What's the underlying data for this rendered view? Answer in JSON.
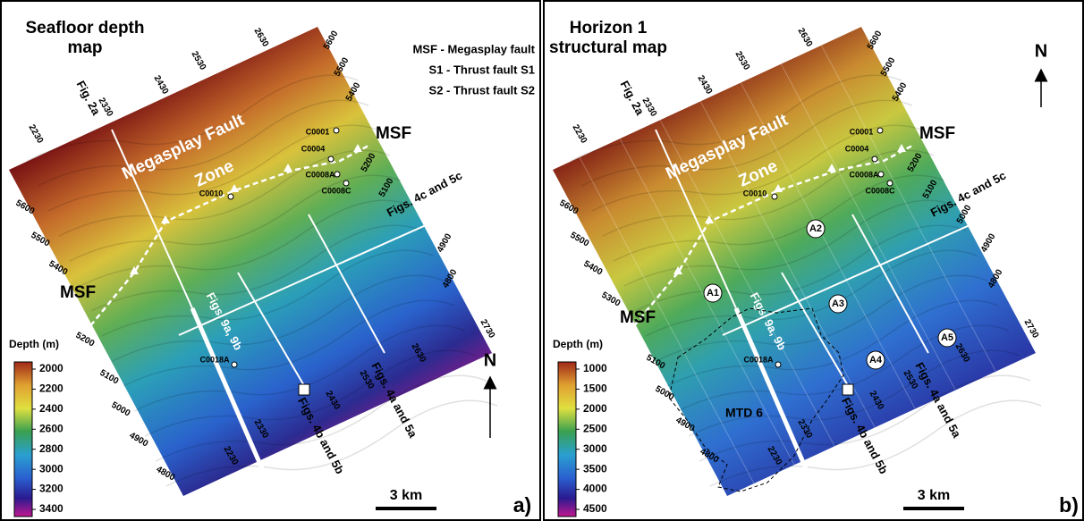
{
  "panels": [
    {
      "title": [
        "Seafloor depth",
        "map"
      ],
      "legend": [
        "MSF - Megasplay fault",
        "S1 - Thrust fault S1",
        "S2 - Thrust fault S2"
      ],
      "zone_label": [
        "Megasplay Fault",
        "Zone"
      ],
      "fig_2a": "Fig. 2a",
      "msf_labels": [
        "MSF",
        "MSF"
      ],
      "wells": [
        "C0001",
        "C0004",
        "C0008A",
        "C0008C",
        "C0010",
        "C0018A"
      ],
      "sections": [
        "Figs. 4c and 5c",
        "Figs. 9a, 9b",
        "Figs. 4b and 5b",
        "Figs. 4a and 5a"
      ],
      "top_ticks": [
        2230,
        2330,
        2430,
        2530,
        2630
      ],
      "right_ticks": [
        5600,
        5500,
        5400,
        5200,
        5100,
        4900,
        4800
      ],
      "left_ticks": [
        5600,
        5500,
        5400,
        5200,
        5100,
        5000,
        4900,
        4800
      ],
      "bottom_ticks": [
        2730,
        2630,
        2530,
        2430,
        2330,
        2230
      ],
      "colorbar": {
        "title": "Depth (m)",
        "ticks": [
          2000,
          2200,
          2400,
          2600,
          2800,
          3000,
          3200,
          3400
        ]
      },
      "north": "N",
      "scale": "3 km",
      "panel_label": "a)"
    },
    {
      "title": [
        "Horizon 1",
        "structural map"
      ],
      "zone_label": [
        "Megasplay Fault",
        "Zone"
      ],
      "fig_2a": "Fig. 2a",
      "msf_labels": [
        "MSF",
        "MSF"
      ],
      "wells": [
        "C0001",
        "C0004",
        "C0008A",
        "C0008C",
        "C0010",
        "C0018A"
      ],
      "sections": [
        "Figs. 4c and 5c",
        "Figs. 9a, 9b",
        "Figs. 4b and 5b",
        "Figs. 4a and 5a"
      ],
      "areas": [
        "A1",
        "A2",
        "A3",
        "A4",
        "A5"
      ],
      "mtd": "MTD 6",
      "top_ticks": [
        2230,
        2330,
        2430,
        2530,
        2630
      ],
      "right_ticks": [
        5600,
        5500,
        5400,
        5200,
        5100,
        5000,
        4900,
        4800
      ],
      "left_ticks": [
        5600,
        5500,
        5400,
        5300,
        5100,
        5000,
        4900,
        4800
      ],
      "bottom_ticks": [
        2730,
        2630,
        2530,
        2430,
        2330,
        2230
      ],
      "colorbar": {
        "title": "Depth (m)",
        "ticks": [
          1000,
          1500,
          2000,
          2500,
          3000,
          3500,
          4000,
          4500
        ]
      },
      "north": "N",
      "scale": "3 km",
      "panel_label": "b)"
    }
  ]
}
